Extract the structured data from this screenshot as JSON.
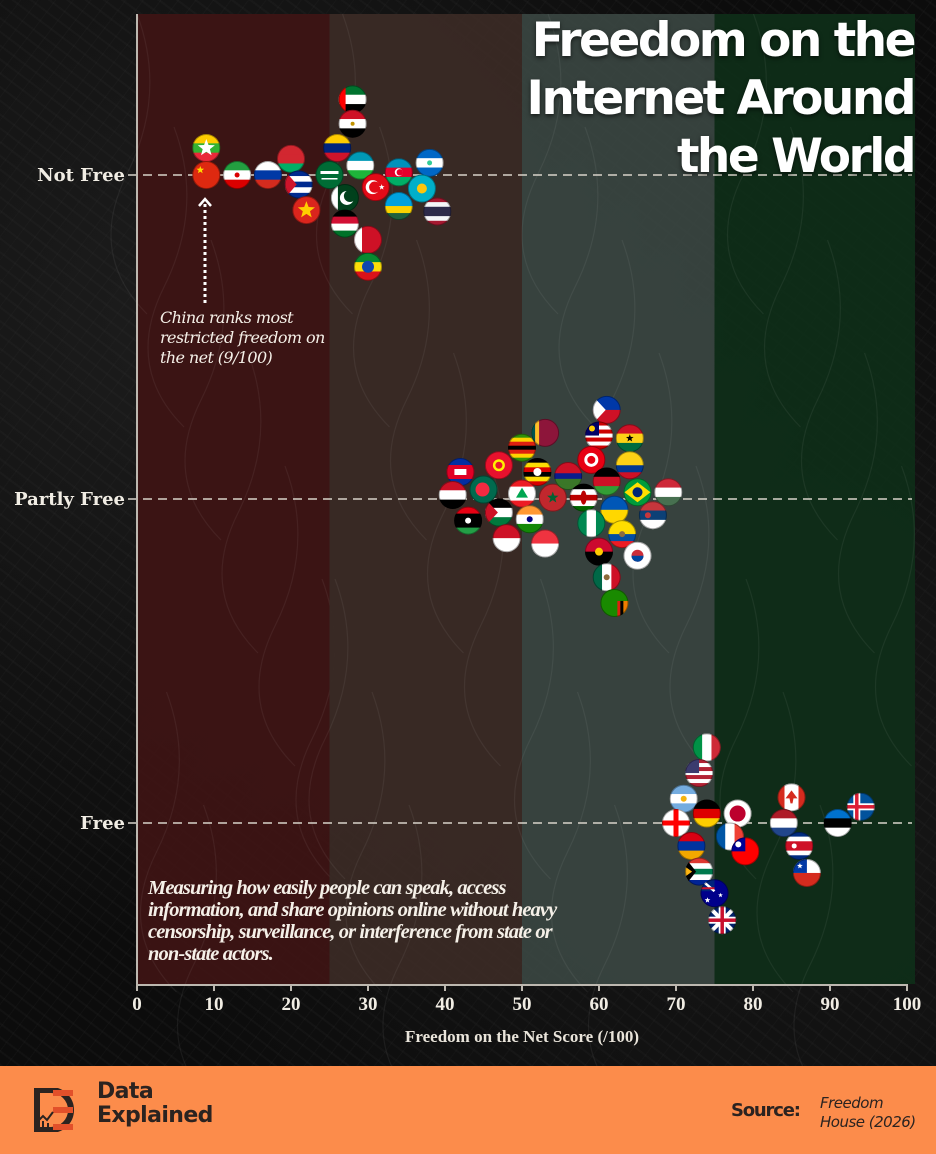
{
  "title": "Freedom on the Internet Around the World",
  "title_lines": [
    "Freedom on the",
    "Internet Around",
    "the World"
  ],
  "annotations": {
    "china_note": "China ranks most restricted freedom on the net (9/100)",
    "description": "Measuring how easily people can speak, access information, and share opinions online without heavy censorship, surveillance, or interference from state or non-state actors."
  },
  "footer": {
    "brand_line1": "Data",
    "brand_line2": "Explained",
    "source_label": "Source:",
    "source_line1": "Freedom",
    "source_line2": "House (2026)"
  },
  "colors": {
    "band_0_25": "#3d1414",
    "band_25_50": "#3a2a25",
    "band_50_75": "#394540",
    "band_75_100": "#0f2d18",
    "footer_bg": "#fc8c4b",
    "text": "#f1ede4"
  },
  "chart_data": {
    "type": "scatter",
    "title": "Freedom on the Internet Around the World",
    "xlabel": "Freedom on the Net Score (/100)",
    "ylabel": "",
    "xlim": [
      0,
      100
    ],
    "x_ticks": [
      0,
      10,
      20,
      30,
      40,
      50,
      60,
      70,
      80,
      90,
      100
    ],
    "categories": [
      "Not Free",
      "Partly Free",
      "Free"
    ],
    "bands": [
      {
        "from": 0,
        "to": 25
      },
      {
        "from": 25,
        "to": 50
      },
      {
        "from": 50,
        "to": 75
      },
      {
        "from": 75,
        "to": 100
      }
    ],
    "gridlines": "dashed horizontal at each category",
    "points": [
      {
        "country": "Myanmar",
        "category": "Not Free",
        "score": 9,
        "offset": -1,
        "flag": "myanmar"
      },
      {
        "country": "China",
        "category": "Not Free",
        "score": 9,
        "offset": 0,
        "flag": "china"
      },
      {
        "country": "Iran",
        "category": "Not Free",
        "score": 13,
        "offset": 0,
        "flag": "iran"
      },
      {
        "country": "Russia",
        "category": "Not Free",
        "score": 17,
        "offset": 0,
        "flag": "russia"
      },
      {
        "country": "Belarus",
        "category": "Not Free",
        "score": 20,
        "offset": -0.6,
        "flag": "belarus"
      },
      {
        "country": "Cuba",
        "category": "Not Free",
        "score": 21,
        "offset": 0.35,
        "flag": "cuba"
      },
      {
        "country": "Vietnam",
        "category": "Not Free",
        "score": 22,
        "offset": 1.3,
        "flag": "vietnam"
      },
      {
        "country": "United Arab Emirates",
        "category": "Not Free",
        "score": 28,
        "offset": -2.8,
        "flag": "uae"
      },
      {
        "country": "Egypt",
        "category": "Not Free",
        "score": 28,
        "offset": -1.9,
        "flag": "egypt"
      },
      {
        "country": "Venezuela",
        "category": "Not Free",
        "score": 26,
        "offset": -1,
        "flag": "venezuela"
      },
      {
        "country": "Saudi Arabia",
        "category": "Not Free",
        "score": 25,
        "offset": 0,
        "flag": "saudi"
      },
      {
        "country": "Uzbekistan",
        "category": "Not Free",
        "score": 29,
        "offset": -0.35,
        "flag": "uzbekistan"
      },
      {
        "country": "Pakistan",
        "category": "Not Free",
        "score": 27,
        "offset": 0.85,
        "flag": "pakistan"
      },
      {
        "country": "Sudan",
        "category": "Not Free",
        "score": 27,
        "offset": 1.8,
        "flag": "sudan"
      },
      {
        "country": "Bahrain",
        "category": "Not Free",
        "score": 30,
        "offset": 2.4,
        "flag": "bahrain"
      },
      {
        "country": "Ethiopia",
        "category": "Not Free",
        "score": 30,
        "offset": 3.4,
        "flag": "ethiopia"
      },
      {
        "country": "Turkey",
        "category": "Not Free",
        "score": 31,
        "offset": 0.45,
        "flag": "turkey"
      },
      {
        "country": "Azerbaijan",
        "category": "Not Free",
        "score": 34,
        "offset": -0.1,
        "flag": "azerbaijan"
      },
      {
        "country": "Rwanda",
        "category": "Not Free",
        "score": 34,
        "offset": 1.15,
        "flag": "rwanda"
      },
      {
        "country": "Nicaragua",
        "category": "Not Free",
        "score": 38,
        "offset": -0.45,
        "flag": "nicaragua"
      },
      {
        "country": "Kazakhstan",
        "category": "Not Free",
        "score": 37,
        "offset": 0.5,
        "flag": "kazakhstan"
      },
      {
        "country": "Thailand",
        "category": "Not Free",
        "score": 39,
        "offset": 1.35,
        "flag": "thailand"
      },
      {
        "country": "Cambodia",
        "category": "Partly Free",
        "score": 42,
        "offset": -1,
        "flag": "cambodia"
      },
      {
        "country": "Iraq",
        "category": "Partly Free",
        "score": 41,
        "offset": -0.15,
        "flag": "iraq"
      },
      {
        "country": "Libya",
        "category": "Partly Free",
        "score": 43,
        "offset": 0.8,
        "flag": "libya"
      },
      {
        "country": "Bangladesh",
        "category": "Partly Free",
        "score": 45,
        "offset": -0.35,
        "flag": "bangladesh"
      },
      {
        "country": "Kyrgyzstan",
        "category": "Partly Free",
        "score": 47,
        "offset": -1.25,
        "flag": "kyrgyzstan"
      },
      {
        "country": "Zimbabwe",
        "category": "Partly Free",
        "score": 50,
        "offset": -1.9,
        "flag": "zimbabwe"
      },
      {
        "country": "Sri Lanka",
        "category": "Partly Free",
        "score": 53,
        "offset": -2.45,
        "flag": "srilanka"
      },
      {
        "country": "Uganda",
        "category": "Partly Free",
        "score": 52,
        "offset": -1,
        "flag": "uganda"
      },
      {
        "country": "Jordan",
        "category": "Partly Free",
        "score": 47,
        "offset": 0.5,
        "flag": "jordan"
      },
      {
        "country": "Lebanon",
        "category": "Partly Free",
        "score": 50,
        "offset": -0.2,
        "flag": "lebanon"
      },
      {
        "country": "Morocco",
        "category": "Partly Free",
        "score": 54,
        "offset": -0.05,
        "flag": "morocco"
      },
      {
        "country": "India",
        "category": "Partly Free",
        "score": 51,
        "offset": 0.75,
        "flag": "india"
      },
      {
        "country": "Indonesia",
        "category": "Partly Free",
        "score": 48,
        "offset": 1.45,
        "flag": "indonesia"
      },
      {
        "country": "Singapore",
        "category": "Partly Free",
        "score": 53,
        "offset": 1.65,
        "flag": "singapore"
      },
      {
        "country": "The Gambia",
        "category": "Partly Free",
        "score": 56,
        "offset": -0.85,
        "flag": "gambia"
      },
      {
        "country": "Kenya",
        "category": "Partly Free",
        "score": 58,
        "offset": -0.05,
        "flag": "kenya"
      },
      {
        "country": "Philippines",
        "category": "Partly Free",
        "score": 61,
        "offset": -3.3,
        "flag": "philippines"
      },
      {
        "country": "Malaysia",
        "category": "Partly Free",
        "score": 60,
        "offset": -2.35,
        "flag": "malaysia"
      },
      {
        "country": "Ghana",
        "category": "Partly Free",
        "score": 64,
        "offset": -2.25,
        "flag": "ghana"
      },
      {
        "country": "Tunisia",
        "category": "Partly Free",
        "score": 59,
        "offset": -1.45,
        "flag": "tunisia"
      },
      {
        "country": "Colombia",
        "category": "Partly Free",
        "score": 64,
        "offset": -1.25,
        "flag": "colombia"
      },
      {
        "country": "Malawi",
        "category": "Partly Free",
        "score": 61,
        "offset": -0.65,
        "flag": "malawi"
      },
      {
        "country": "Brazil",
        "category": "Partly Free",
        "score": 65,
        "offset": -0.25,
        "flag": "brazil"
      },
      {
        "country": "Hungary",
        "category": "Partly Free",
        "score": 69,
        "offset": -0.25,
        "flag": "hungary"
      },
      {
        "country": "Ukraine",
        "category": "Partly Free",
        "score": 62,
        "offset": 0.4,
        "flag": "ukraine"
      },
      {
        "country": "Serbia",
        "category": "Partly Free",
        "score": 67,
        "offset": 0.6,
        "flag": "serbia"
      },
      {
        "country": "Nigeria",
        "category": "Partly Free",
        "score": 59,
        "offset": 0.9,
        "flag": "nigeria"
      },
      {
        "country": "Ecuador",
        "category": "Partly Free",
        "score": 63,
        "offset": 1.3,
        "flag": "ecuador"
      },
      {
        "country": "Angola",
        "category": "Partly Free",
        "score": 60,
        "offset": 1.95,
        "flag": "angola"
      },
      {
        "country": "South Korea",
        "category": "Partly Free",
        "score": 65,
        "offset": 2.1,
        "flag": "southkorea"
      },
      {
        "country": "Mexico",
        "category": "Partly Free",
        "score": 61,
        "offset": 2.9,
        "flag": "mexico"
      },
      {
        "country": "Zambia",
        "category": "Partly Free",
        "score": 62,
        "offset": 3.85,
        "flag": "zambia"
      },
      {
        "country": "Italy",
        "category": "Free",
        "score": 74,
        "offset": -2.8,
        "flag": "italy"
      },
      {
        "country": "United States",
        "category": "Free",
        "score": 73,
        "offset": -1.85,
        "flag": "usa"
      },
      {
        "country": "Argentina",
        "category": "Free",
        "score": 71,
        "offset": -0.9,
        "flag": "argentina"
      },
      {
        "country": "Georgia",
        "category": "Free",
        "score": 70,
        "offset": 0,
        "flag": "georgia"
      },
      {
        "country": "Germany",
        "category": "Free",
        "score": 74,
        "offset": -0.35,
        "flag": "germany"
      },
      {
        "country": "Japan",
        "category": "Free",
        "score": 78,
        "offset": -0.35,
        "flag": "japan"
      },
      {
        "country": "France",
        "category": "Free",
        "score": 77,
        "offset": 0.5,
        "flag": "france"
      },
      {
        "country": "Armenia",
        "category": "Free",
        "score": 72,
        "offset": 0.85,
        "flag": "armenia"
      },
      {
        "country": "Taiwan",
        "category": "Free",
        "score": 79,
        "offset": 1.05,
        "flag": "taiwan"
      },
      {
        "country": "South Africa",
        "category": "Free",
        "score": 73,
        "offset": 1.8,
        "flag": "southafrica"
      },
      {
        "country": "Australia",
        "category": "Free",
        "score": 75,
        "offset": 2.6,
        "flag": "australia"
      },
      {
        "country": "United Kingdom",
        "category": "Free",
        "score": 76,
        "offset": 3.6,
        "flag": "uk"
      },
      {
        "country": "Canada",
        "category": "Free",
        "score": 85,
        "offset": -0.95,
        "flag": "canada"
      },
      {
        "country": "Netherlands",
        "category": "Free",
        "score": 84,
        "offset": 0,
        "flag": "netherlands"
      },
      {
        "country": "Costa Rica",
        "category": "Free",
        "score": 86,
        "offset": 0.85,
        "flag": "costarica"
      },
      {
        "country": "Chile",
        "category": "Free",
        "score": 87,
        "offset": 1.85,
        "flag": "chile"
      },
      {
        "country": "Estonia",
        "category": "Free",
        "score": 91,
        "offset": 0,
        "flag": "estonia"
      },
      {
        "country": "Iceland",
        "category": "Free",
        "score": 94,
        "offset": -0.6,
        "flag": "iceland"
      }
    ]
  }
}
